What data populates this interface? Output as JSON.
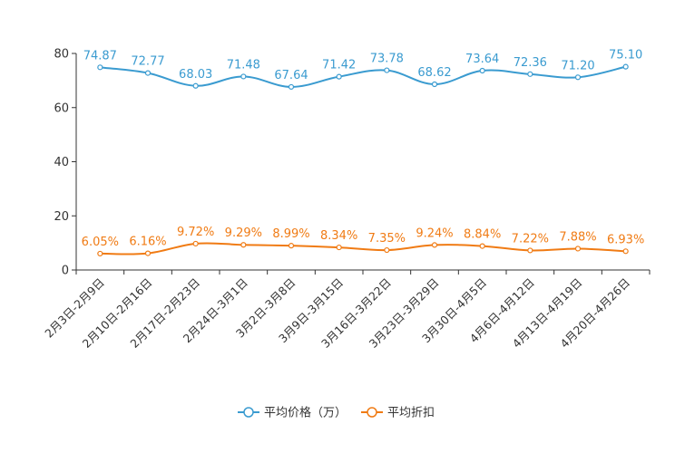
{
  "chart_data": {
    "type": "line",
    "categories": [
      "2月3日-2月9日",
      "2月10日-2月16日",
      "2月17日-2月23日",
      "2月24日-3月1日",
      "3月2日-3月8日",
      "3月9日-3月15日",
      "3月16日-3月22日",
      "3月23日-3月29日",
      "3月30日-4月5日",
      "4月6日-4月12日",
      "4月13日-4月19日",
      "4月20日-4月26日"
    ],
    "series": [
      {
        "name": "平均价格（万）",
        "color": "#3a9bd0",
        "values": [
          74.87,
          72.77,
          68.03,
          71.48,
          67.64,
          71.42,
          73.78,
          68.62,
          73.64,
          72.36,
          71.2,
          75.1
        ],
        "labels": [
          "74.87",
          "72.77",
          "68.03",
          "71.48",
          "67.64",
          "71.42",
          "73.78",
          "68.62",
          "73.64",
          "72.36",
          "71.20",
          "75.10"
        ]
      },
      {
        "name": "平均折扣",
        "color": "#f07b14",
        "values": [
          6.05,
          6.16,
          9.72,
          9.29,
          8.99,
          8.34,
          7.35,
          9.24,
          8.84,
          7.22,
          7.88,
          6.93
        ],
        "labels": [
          "6.05%",
          "6.16%",
          "9.72%",
          "9.29%",
          "8.99%",
          "8.34%",
          "7.35%",
          "9.24%",
          "8.84%",
          "7.22%",
          "7.88%",
          "6.93%"
        ]
      }
    ],
    "yticks": [
      "0",
      "20",
      "40",
      "60",
      "80"
    ],
    "ylim": [
      0,
      80
    ],
    "grid": false,
    "legend_position": "bottom-center",
    "title": "",
    "xlabel": "",
    "ylabel": ""
  }
}
